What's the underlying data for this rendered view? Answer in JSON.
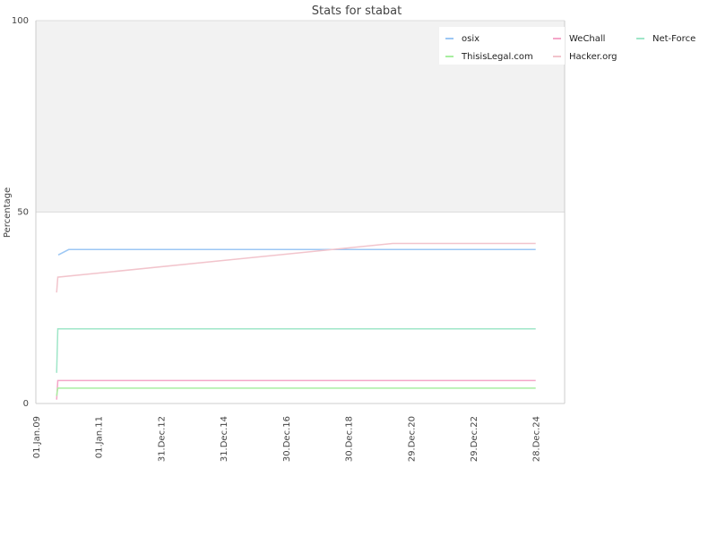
{
  "chart_data": {
    "type": "line",
    "title": "Stats for stabat",
    "xlabel": "",
    "ylabel": "Percentage",
    "ylim": [
      0,
      100
    ],
    "y_ticks": [
      "0",
      "50",
      "100"
    ],
    "x_ticks": [
      "01.Jan.09",
      "01.Jan.11",
      "31.Dec.12",
      "31.Dec.14",
      "30.Dec.16",
      "30.Dec.18",
      "29.Dec.20",
      "29.Dec.22",
      "28.Dec.24"
    ],
    "xlim": [
      "2009-01-01",
      "2025-12-01"
    ],
    "background_band": {
      "from": 50,
      "to": 100,
      "color": "#f2f2f2"
    },
    "legend_position": "top-right",
    "series": [
      {
        "name": "osix",
        "color": "#9cc7f4",
        "points": [
          [
            "2009-09-20",
            38.8
          ],
          [
            "2010-01-20",
            40.2
          ],
          [
            "2024-12-28",
            40.2
          ]
        ]
      },
      {
        "name": "WeChall",
        "color": "#f4a6c8",
        "points": [
          [
            "2009-09-01",
            1.0
          ],
          [
            "2009-09-15",
            6.0
          ],
          [
            "2024-12-28",
            6.0
          ]
        ]
      },
      {
        "name": "Net-Force",
        "color": "#9fe6c8",
        "points": [
          [
            "2009-09-01",
            8.0
          ],
          [
            "2009-09-15",
            19.5
          ],
          [
            "2024-12-28",
            19.5
          ]
        ]
      },
      {
        "name": "ThisisLegal.com",
        "color": "#a8eea0",
        "points": [
          [
            "2009-09-01",
            2.0
          ],
          [
            "2009-09-15",
            4.0
          ],
          [
            "2024-12-28",
            4.0
          ]
        ]
      },
      {
        "name": "Hacker.org",
        "color": "#f2c4cc",
        "points": [
          [
            "2009-09-01",
            29.0
          ],
          [
            "2009-09-15",
            33.0
          ],
          [
            "2020-06-01",
            41.8
          ],
          [
            "2024-12-28",
            41.8
          ]
        ]
      }
    ]
  }
}
